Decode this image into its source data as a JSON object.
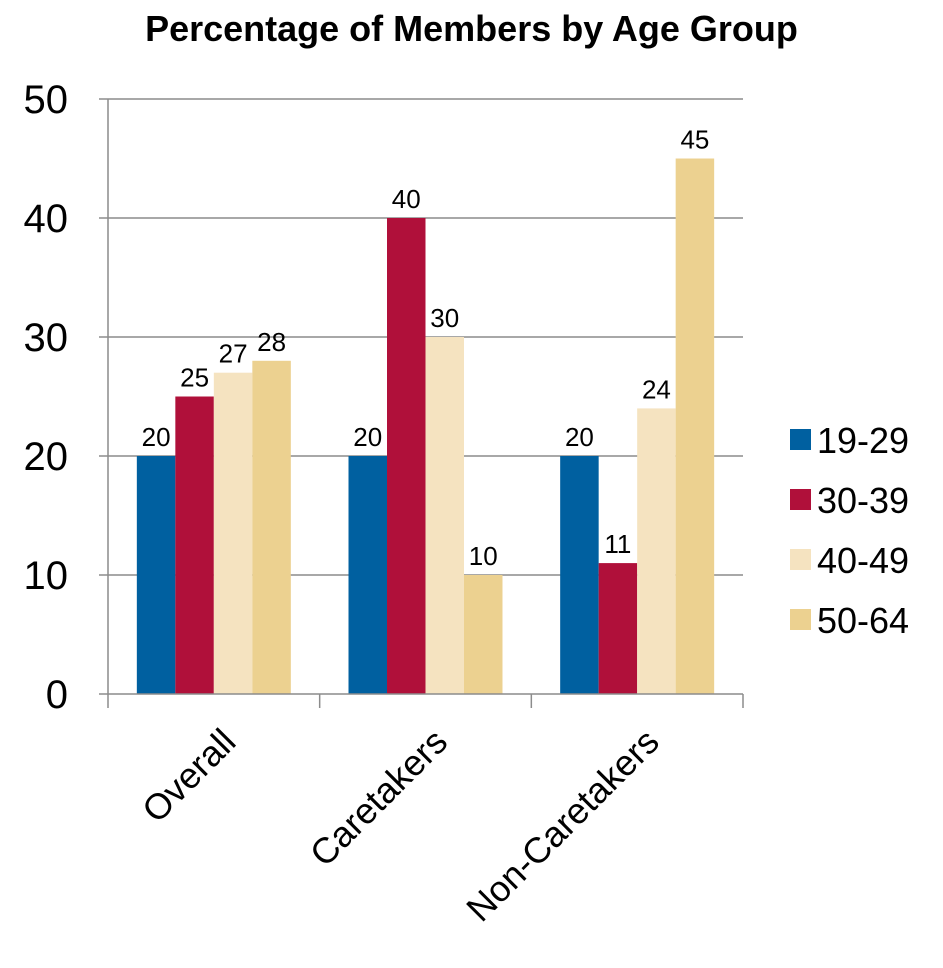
{
  "chart_data": {
    "type": "bar",
    "title": "Percentage of Members by Age Group",
    "categories": [
      "Overall",
      "Caretakers",
      "Non-Caretakers"
    ],
    "series": [
      {
        "name": "19-29",
        "values": [
          20,
          20,
          20
        ],
        "color": "#0060A0"
      },
      {
        "name": "30-39",
        "values": [
          25,
          40,
          11
        ],
        "color": "#B0103A"
      },
      {
        "name": "40-49",
        "values": [
          27,
          30,
          24
        ],
        "color": "#F5E3C0"
      },
      {
        "name": "50-64",
        "values": [
          28,
          10,
          45
        ],
        "color": "#ECD190"
      }
    ],
    "ylim": [
      0,
      50
    ],
    "yticks": [
      "0",
      "10",
      "20",
      "30",
      "40",
      "50"
    ],
    "grid": true,
    "legend": "right"
  }
}
